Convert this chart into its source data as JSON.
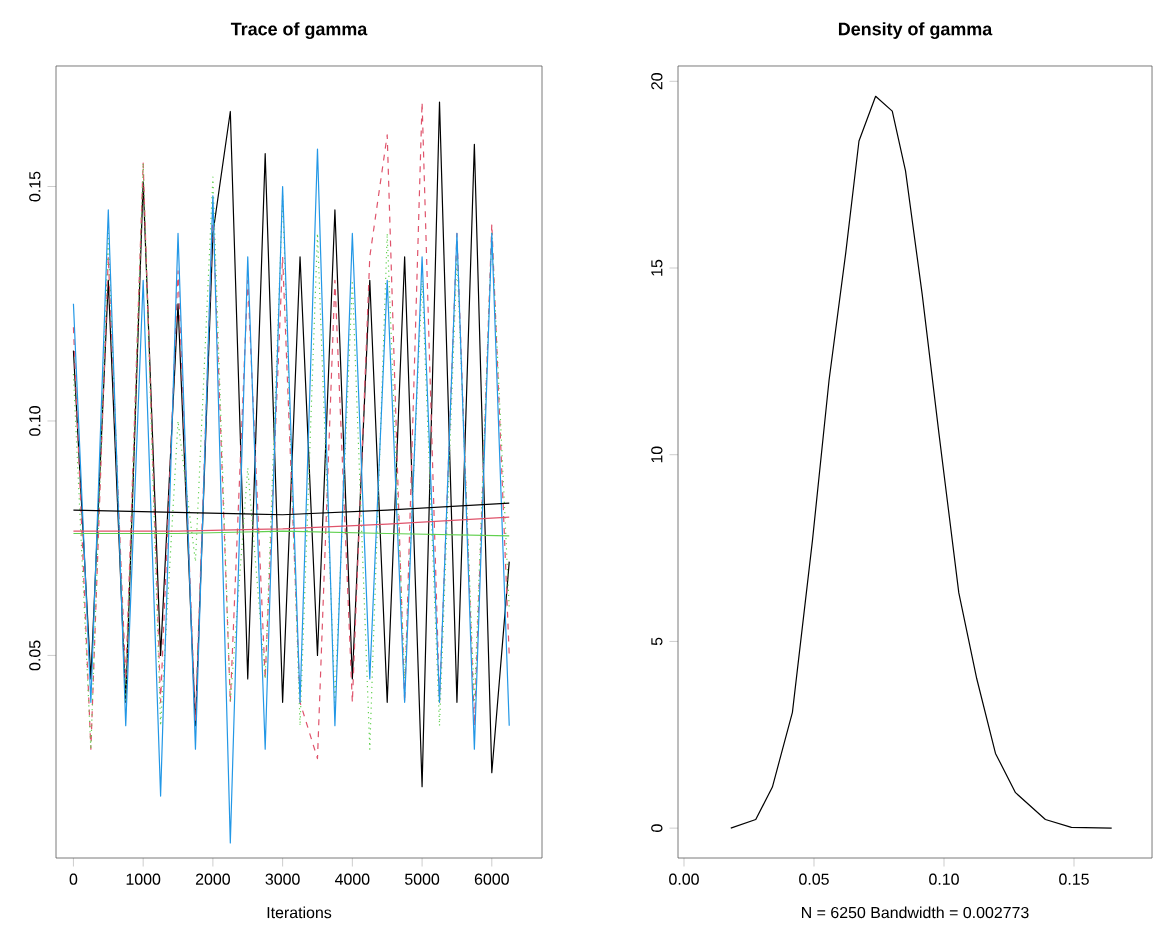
{
  "chart_data": [
    {
      "type": "line",
      "title": "Trace of gamma",
      "xlabel": "Iterations",
      "marker": "none",
      "xlim": [
        -250,
        6720
      ],
      "ylim": [
        0.0068,
        0.1757
      ],
      "xticks": [
        0,
        1000,
        2000,
        3000,
        4000,
        5000,
        6000
      ],
      "yticks": [
        {
          "value": 0.05,
          "label": "0.05"
        },
        {
          "value": 0.1,
          "label": "0.10"
        },
        {
          "value": 0.15,
          "label": "0.15"
        }
      ],
      "series": [
        {
          "color": "#000000",
          "line_style": "solid",
          "x": [
            0,
            250,
            500,
            750,
            1000,
            1250,
            1500,
            1750,
            2000,
            2250,
            2500,
            2750,
            3000,
            3250,
            3500,
            3750,
            4000,
            4250,
            4500,
            4750,
            5000,
            5250,
            5500,
            5750,
            6000,
            6250
          ],
          "values": [
            0.115,
            0.045,
            0.13,
            0.04,
            0.151,
            0.05,
            0.125,
            0.035,
            0.14,
            0.166,
            0.045,
            0.157,
            0.04,
            0.135,
            0.05,
            0.145,
            0.045,
            0.13,
            0.04,
            0.135,
            0.022,
            0.168,
            0.04,
            0.159,
            0.025,
            0.07
          ]
        },
        {
          "color": "#df536b",
          "line_style": "dashed",
          "x": [
            0,
            250,
            500,
            750,
            1000,
            1250,
            1500,
            1750,
            2000,
            2250,
            2500,
            2750,
            3000,
            3250,
            3500,
            3750,
            4000,
            4250,
            4500,
            4750,
            5000,
            5250,
            5500,
            5750,
            6000,
            6250
          ],
          "values": [
            0.12,
            0.03,
            0.135,
            0.045,
            0.155,
            0.04,
            0.132,
            0.036,
            0.145,
            0.04,
            0.13,
            0.045,
            0.135,
            0.04,
            0.028,
            0.13,
            0.04,
            0.135,
            0.161,
            0.04,
            0.168,
            0.04,
            0.14,
            0.035,
            0.142,
            0.05
          ]
        },
        {
          "color": "#61d04f",
          "line_style": "dotted",
          "x": [
            0,
            250,
            500,
            750,
            1000,
            1250,
            1500,
            1750,
            2000,
            2250,
            2500,
            2750,
            3000,
            3250,
            3500,
            3750,
            4000,
            4250,
            4500,
            4750,
            5000,
            5250,
            5500,
            5750,
            6000,
            6250
          ],
          "values": [
            0.11,
            0.03,
            0.14,
            0.04,
            0.155,
            0.035,
            0.1,
            0.07,
            0.152,
            0.04,
            0.09,
            0.045,
            0.148,
            0.035,
            0.14,
            0.04,
            0.13,
            0.03,
            0.14,
            0.045,
            0.13,
            0.035,
            0.135,
            0.04,
            0.14,
            0.06
          ]
        },
        {
          "color": "#2297e6",
          "line_style": "solid",
          "x": [
            0,
            250,
            500,
            750,
            1000,
            1250,
            1500,
            1750,
            2000,
            2250,
            2500,
            2750,
            3000,
            3250,
            3500,
            3750,
            4000,
            4250,
            4500,
            4750,
            5000,
            5250,
            5500,
            5750,
            6000,
            6250
          ],
          "values": [
            0.125,
            0.04,
            0.145,
            0.035,
            0.13,
            0.02,
            0.14,
            0.03,
            0.148,
            0.01,
            0.135,
            0.03,
            0.15,
            0.04,
            0.158,
            0.035,
            0.14,
            0.045,
            0.13,
            0.04,
            0.135,
            0.04,
            0.14,
            0.03,
            0.14,
            0.035
          ]
        },
        {
          "color": "#000000",
          "line_style": "solid",
          "x": [
            0,
            1500,
            3000,
            4500,
            6250
          ],
          "values": [
            0.081,
            0.0805,
            0.08,
            0.081,
            0.0825
          ]
        },
        {
          "color": "#df536b",
          "line_style": "solid",
          "x": [
            0,
            1500,
            3000,
            4500,
            6250
          ],
          "values": [
            0.0765,
            0.0765,
            0.077,
            0.078,
            0.0795
          ]
        },
        {
          "color": "#61d04f",
          "line_style": "solid",
          "x": [
            0,
            1500,
            3000,
            4500,
            6250
          ],
          "values": [
            0.076,
            0.076,
            0.0765,
            0.076,
            0.0755
          ]
        }
      ]
    },
    {
      "type": "line",
      "title": "Density of gamma",
      "xlabel": "N = 6250   Bandwidth = 0.002773",
      "marker": "none",
      "xlim": [
        -0.0023,
        0.18
      ],
      "ylim": [
        -0.8,
        20.41
      ],
      "xticks": [
        {
          "value": 0,
          "label": "0.00"
        },
        {
          "value": 0.05,
          "label": "0.05"
        },
        {
          "value": 0.1,
          "label": "0.10"
        },
        {
          "value": 0.15,
          "label": "0.15"
        }
      ],
      "yticks": [
        0,
        5,
        10,
        15,
        20
      ],
      "series": [
        {
          "color": "#000000",
          "line_style": "solid",
          "x": [
            0.018,
            0.0276,
            0.034,
            0.0417,
            0.0494,
            0.0558,
            0.0622,
            0.0673,
            0.0737,
            0.0801,
            0.0852,
            0.0916,
            0.098,
            0.1057,
            0.1126,
            0.1198,
            0.1275,
            0.139,
            0.149,
            0.1645
          ],
          "values": [
            0,
            0.23,
            1.1,
            3.1,
            7.7,
            12.0,
            15.4,
            18.4,
            19.6,
            19.2,
            17.6,
            14.3,
            10.6,
            6.3,
            4.0,
            2.0,
            0.95,
            0.23,
            0.02,
            0
          ]
        }
      ]
    }
  ]
}
